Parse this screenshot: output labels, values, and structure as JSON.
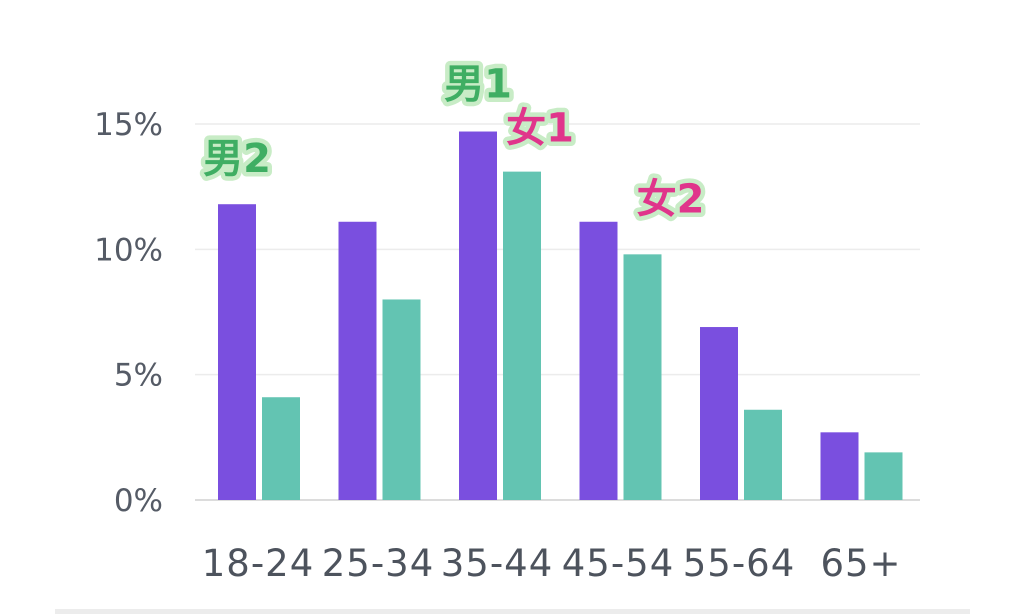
{
  "chart_data": {
    "type": "bar",
    "categories": [
      "18-24",
      "25-34",
      "35-44",
      "45-54",
      "55-64",
      "65+"
    ],
    "series": [
      {
        "values": [
          11.8,
          11.1,
          14.7,
          11.1,
          6.9,
          2.7
        ],
        "color": "#7a4fdf"
      },
      {
        "values": [
          4.1,
          8.0,
          13.1,
          9.8,
          3.6,
          1.9
        ],
        "color": "#63c4b2"
      }
    ],
    "yticks": [
      "0%",
      "5%",
      "10%",
      "15%"
    ],
    "ytick_values": [
      0,
      5,
      10,
      15
    ],
    "ylim": [
      0,
      15
    ],
    "grid": true,
    "annotations": [
      {
        "text": "男2",
        "series": 0,
        "category": 0,
        "color": "#3fae63"
      },
      {
        "text": "男1",
        "series": 0,
        "category": 2,
        "color": "#3fae63"
      },
      {
        "text": "女1",
        "series": 1,
        "category": 2,
        "color": "#e0358b"
      },
      {
        "text": "女2",
        "series": 1,
        "category": 3,
        "color": "#e0358b"
      }
    ]
  }
}
